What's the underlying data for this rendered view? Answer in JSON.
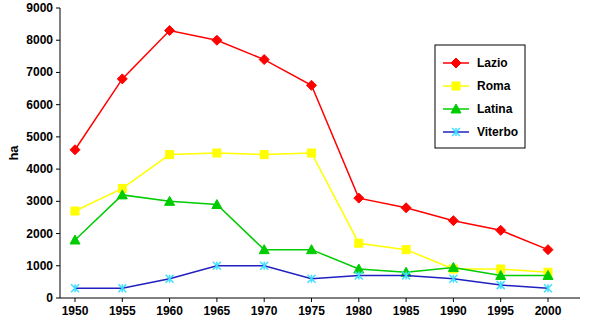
{
  "chart_data": {
    "type": "line",
    "y_label": "ha",
    "categories": [
      "1950",
      "1955",
      "1960",
      "1965",
      "1970",
      "1975",
      "1980",
      "1985",
      "1990",
      "1995",
      "2000"
    ],
    "series": [
      {
        "name": "Lazio",
        "color": "#ff0000",
        "marker": "diamond",
        "values": [
          4600,
          6800,
          8300,
          8000,
          7400,
          6600,
          3100,
          2800,
          2400,
          2100,
          1500
        ]
      },
      {
        "name": "Roma",
        "color": "#ffff00",
        "marker": "square",
        "values": [
          2700,
          3400,
          4450,
          4500,
          4450,
          4500,
          1700,
          1500,
          900,
          900,
          800
        ]
      },
      {
        "name": "Latina",
        "color": "#00cc00",
        "marker": "triangle",
        "values": [
          1800,
          3200,
          3000,
          2900,
          1500,
          1500,
          900,
          800,
          950,
          700,
          700
        ]
      },
      {
        "name": "Viterbo",
        "color": "#2020c0",
        "marker": "x",
        "values": [
          300,
          300,
          600,
          1000,
          1000,
          600,
          700,
          700,
          600,
          400,
          300
        ]
      }
    ],
    "ylim": [
      0,
      9000
    ],
    "yticks": [
      0,
      1000,
      2000,
      3000,
      4000,
      5000,
      6000,
      7000,
      8000,
      9000
    ],
    "grid": false,
    "legend": "top-right"
  }
}
